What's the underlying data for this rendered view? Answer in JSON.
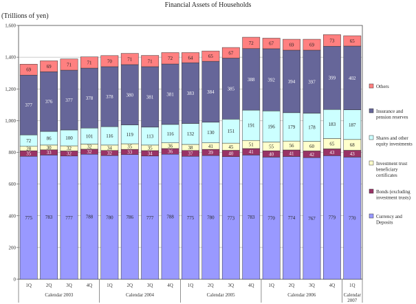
{
  "chart_data": {
    "type": "bar",
    "stacked": true,
    "title": "Financial Assets of Households",
    "ylabel": "(Trillions of yen)",
    "ylim": [
      0,
      1600
    ],
    "yticks": [
      "0",
      "200",
      "400",
      "600",
      "800",
      "1,000",
      "1,200",
      "1,400",
      "1,600"
    ],
    "ytick_values": [
      0,
      200,
      400,
      600,
      800,
      1000,
      1200,
      1400,
      1600
    ],
    "categories": [
      "1Q",
      "2Q",
      "3Q",
      "4Q",
      "1Q",
      "2Q",
      "3Q",
      "4Q",
      "1Q",
      "2Q",
      "3Q",
      "4Q",
      "1Q",
      "2Q",
      "3Q",
      "4Q",
      "1Q"
    ],
    "groups": [
      {
        "label": "Calendar 2003",
        "count": 4
      },
      {
        "label": "Calendar 2004",
        "count": 4
      },
      {
        "label": "Calendar 2005",
        "count": 4
      },
      {
        "label": "Calendar 2006",
        "count": 4
      },
      {
        "label": "Calendar\n2007",
        "count": 1
      }
    ],
    "series": [
      {
        "name": "Currency and Deposits",
        "color": "#9999ff",
        "values": [
          775,
          783,
          777,
          788,
          780,
          786,
          777,
          788,
          775,
          780,
          773,
          783,
          770,
          774,
          767,
          779,
          770
        ]
      },
      {
        "name": "Bonds (excluding investment trusts)",
        "color": "#993366",
        "values": [
          35,
          33,
          32,
          32,
          32,
          33,
          34,
          36,
          37,
          39,
          40,
          41,
          40,
          41,
          42,
          43,
          43
        ]
      },
      {
        "name": "Investment trust beneficiary certificates",
        "color": "#ffffcc",
        "values": [
          28,
          30,
          32,
          32,
          34,
          35,
          35,
          36,
          38,
          41,
          45,
          51,
          55,
          56,
          60,
          65,
          68
        ]
      },
      {
        "name": "Shares and other equity investments",
        "color": "#ccffff",
        "values": [
          72,
          86,
          100,
          101,
          116,
          119,
          113,
          116,
          132,
          130,
          151,
          191,
          196,
          179,
          178,
          183,
          187
        ]
      },
      {
        "name": "Insurance and pension reserves",
        "color": "#666699",
        "values": [
          377,
          376,
          377,
          378,
          378,
          380,
          381,
          381,
          383,
          384,
          385,
          388,
          392,
          394,
          397,
          399,
          402
        ]
      },
      {
        "name": "Others",
        "color": "#ff8080",
        "values": [
          69,
          69,
          71,
          71,
          70,
          71,
          71,
          72,
          64,
          65,
          67,
          72,
          67,
          69,
          69,
          73,
          65
        ]
      }
    ],
    "legend_position": "right",
    "legend_order": [
      "Others",
      "Insurance and pension reserves",
      "Shares and other equity investments",
      "Investment trust beneficiary certificates",
      "Bonds (excluding investment trusts)",
      "Currency and Deposits"
    ],
    "legend_labels": {
      "Others": [
        "Others"
      ],
      "Insurance and pension reserves": [
        "Insurance and",
        "pension reserves"
      ],
      "Shares and other equity investments": [
        "Shares and other",
        "equity investments"
      ],
      "Investment trust beneficiary certificates": [
        "Investment trust",
        "beneficiary",
        "certificates"
      ],
      "Bonds (excluding investment trusts)": [
        "Bonds (excluding",
        "investment trusts)"
      ],
      "Currency and Deposits": [
        "Currency and",
        "Deposits"
      ]
    },
    "grid": true
  }
}
